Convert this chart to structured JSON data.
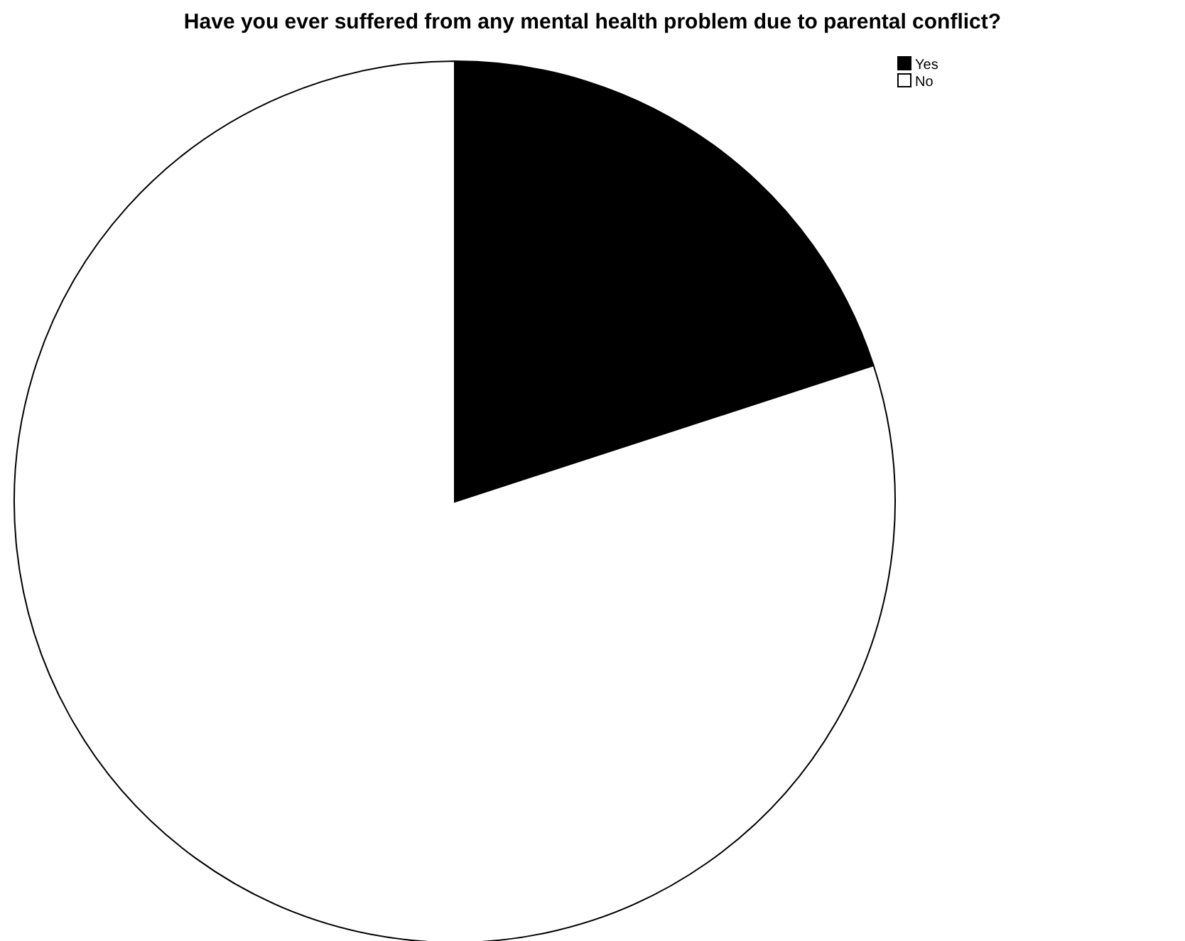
{
  "chart_data": {
    "type": "pie",
    "title": "Have you ever suffered from any mental health problem due to parental conflict?",
    "categories": [
      "Yes",
      "No"
    ],
    "values": [
      20,
      80
    ],
    "colors": [
      "#000000",
      "#ffffff"
    ],
    "legend": "top right"
  }
}
